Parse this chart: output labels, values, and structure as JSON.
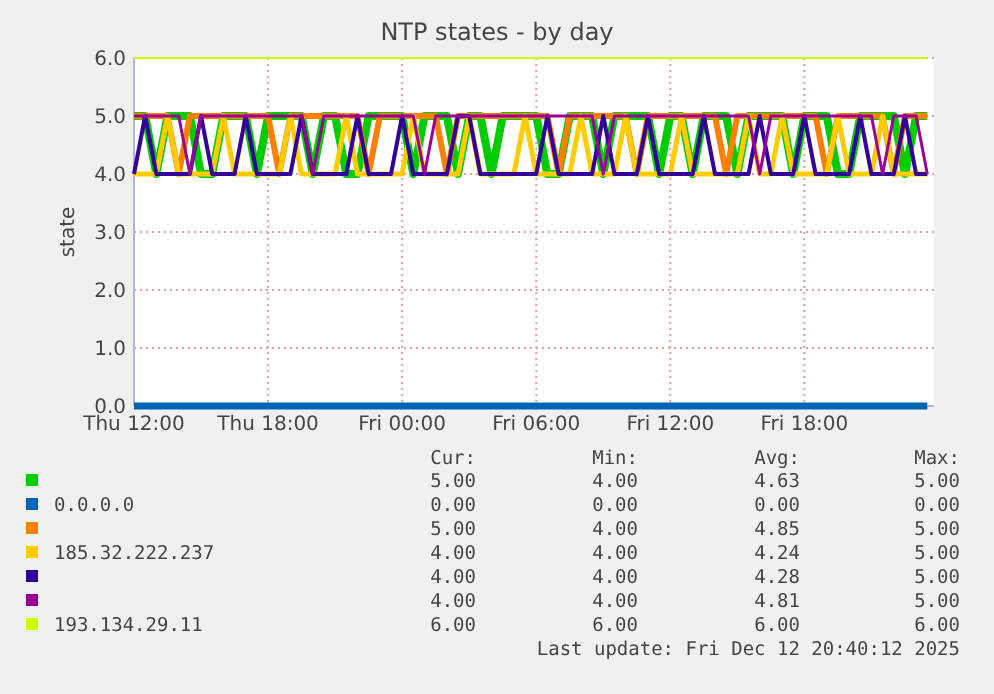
{
  "chart_data": {
    "type": "line",
    "title": "NTP states - by day",
    "ylabel": "state",
    "x": [
      "2025-12-11T12:00",
      "2025-12-11T12:30",
      "2025-12-11T13:00",
      "2025-12-11T13:30",
      "2025-12-11T14:00",
      "2025-12-11T14:30",
      "2025-12-11T15:00",
      "2025-12-11T15:30",
      "2025-12-11T16:00",
      "2025-12-11T16:30",
      "2025-12-11T17:00",
      "2025-12-11T17:30",
      "2025-12-11T18:00",
      "2025-12-11T18:30",
      "2025-12-11T19:00",
      "2025-12-11T19:30",
      "2025-12-11T20:00",
      "2025-12-11T20:30",
      "2025-12-11T21:00",
      "2025-12-11T21:30",
      "2025-12-11T22:00",
      "2025-12-11T22:30",
      "2025-12-11T23:00",
      "2025-12-11T23:30",
      "2025-12-12T00:00",
      "2025-12-12T00:30",
      "2025-12-12T01:00",
      "2025-12-12T01:30",
      "2025-12-12T02:00",
      "2025-12-12T02:30",
      "2025-12-12T03:00",
      "2025-12-12T03:30",
      "2025-12-12T04:00",
      "2025-12-12T04:30",
      "2025-12-12T05:00",
      "2025-12-12T05:30",
      "2025-12-12T06:00",
      "2025-12-12T06:30",
      "2025-12-12T07:00",
      "2025-12-12T07:30",
      "2025-12-12T08:00",
      "2025-12-12T08:30",
      "2025-12-12T09:00",
      "2025-12-12T09:30",
      "2025-12-12T10:00",
      "2025-12-12T10:30",
      "2025-12-12T11:00",
      "2025-12-12T11:30",
      "2025-12-12T12:00",
      "2025-12-12T12:30",
      "2025-12-12T13:00",
      "2025-12-12T13:30",
      "2025-12-12T14:00",
      "2025-12-12T14:30",
      "2025-12-12T15:00",
      "2025-12-12T15:30",
      "2025-12-12T16:00",
      "2025-12-12T16:30",
      "2025-12-12T17:00",
      "2025-12-12T17:30",
      "2025-12-12T18:00",
      "2025-12-12T18:30",
      "2025-12-12T19:00",
      "2025-12-12T19:30",
      "2025-12-12T20:00",
      "2025-12-12T20:30",
      "2025-12-12T21:00",
      "2025-12-12T21:30",
      "2025-12-12T22:00",
      "2025-12-12T22:30",
      "2025-12-12T23:00",
      "2025-12-12T23:30"
    ],
    "xlim": [
      "2025-12-11T12:00",
      "2025-12-12T23:48"
    ],
    "xticks": [
      {
        "value": "2025-12-11T12:00",
        "label": "Thu 12:00"
      },
      {
        "value": "2025-12-11T18:00",
        "label": "Thu 18:00"
      },
      {
        "value": "2025-12-12T00:00",
        "label": "Fri 00:00"
      },
      {
        "value": "2025-12-12T06:00",
        "label": "Fri 06:00"
      },
      {
        "value": "2025-12-12T12:00",
        "label": "Fri 12:00"
      },
      {
        "value": "2025-12-12T18:00",
        "label": "Fri 18:00"
      }
    ],
    "ylim": [
      0,
      6
    ],
    "yticks": [
      {
        "value": 0,
        "label": "0.0"
      },
      {
        "value": 1,
        "label": "1.0"
      },
      {
        "value": 2,
        "label": "2.0"
      },
      {
        "value": 3,
        "label": "3.0"
      },
      {
        "value": 4,
        "label": "4.0"
      },
      {
        "value": 5,
        "label": "5.0"
      },
      {
        "value": 6,
        "label": "6.0"
      }
    ],
    "grid": true,
    "legend": "bottom",
    "series": [
      {
        "color": "#00cc00",
        "values": [
          5,
          5,
          4,
          5,
          5,
          5,
          4,
          4,
          5,
          5,
          5,
          4,
          5,
          5,
          5,
          5,
          4,
          5,
          5,
          4,
          4,
          5,
          5,
          5,
          5,
          4,
          5,
          5,
          5,
          4,
          5,
          5,
          4,
          5,
          5,
          5,
          5,
          4,
          4,
          5,
          5,
          5,
          4,
          5,
          5,
          5,
          5,
          4,
          5,
          5,
          4,
          5,
          5,
          5,
          4,
          5,
          5,
          5,
          5,
          4,
          5,
          5,
          5,
          4,
          4,
          5,
          5,
          5,
          5,
          4,
          5,
          5
        ]
      },
      {
        "name": "0.0.0.0",
        "color": "#0066b3",
        "x": [
          "2025-12-11T12:00",
          "2025-12-12T23:30"
        ],
        "values": [
          0,
          0
        ]
      },
      {
        "color": "#ff8000",
        "values": [
          5,
          5,
          5,
          5,
          4,
          5,
          5,
          5,
          5,
          5,
          5,
          5,
          5,
          4,
          5,
          5,
          5,
          5,
          5,
          5,
          5,
          4,
          5,
          5,
          5,
          5,
          5,
          5,
          4,
          5,
          5,
          5,
          5,
          5,
          5,
          5,
          5,
          5,
          4,
          5,
          5,
          5,
          5,
          5,
          5,
          4,
          5,
          5,
          5,
          5,
          5,
          5,
          5,
          4,
          5,
          5,
          5,
          5,
          5,
          5,
          5,
          5,
          4,
          5,
          5,
          5,
          5,
          5,
          4,
          5,
          5,
          5
        ]
      },
      {
        "name": "185.32.222.237",
        "color": "#ffcc00",
        "values": [
          4,
          4,
          4,
          5,
          4,
          4,
          4,
          4,
          5,
          4,
          4,
          4,
          4,
          4,
          5,
          4,
          4,
          4,
          4,
          5,
          4,
          4,
          4,
          4,
          4,
          5,
          4,
          4,
          4,
          4,
          5,
          4,
          4,
          4,
          4,
          5,
          4,
          4,
          4,
          4,
          5,
          4,
          4,
          4,
          5,
          4,
          4,
          4,
          4,
          5,
          4,
          4,
          4,
          4,
          4,
          5,
          4,
          4,
          5,
          4,
          4,
          4,
          4,
          5,
          4,
          4,
          4,
          5,
          4,
          4,
          4,
          4
        ]
      },
      {
        "color": "#330099",
        "values": [
          4,
          5,
          4,
          4,
          4,
          4,
          5,
          4,
          4,
          4,
          5,
          4,
          4,
          4,
          4,
          5,
          4,
          4,
          4,
          4,
          5,
          4,
          4,
          4,
          5,
          4,
          4,
          4,
          4,
          5,
          5,
          4,
          4,
          4,
          4,
          4,
          4,
          5,
          4,
          4,
          4,
          4,
          5,
          4,
          4,
          4,
          5,
          4,
          4,
          4,
          4,
          5,
          4,
          4,
          4,
          4,
          5,
          4,
          4,
          4,
          5,
          4,
          4,
          4,
          4,
          5,
          4,
          4,
          4,
          5,
          4,
          4
        ]
      },
      {
        "color": "#990099",
        "values": [
          5,
          5,
          5,
          5,
          5,
          4,
          5,
          5,
          5,
          5,
          5,
          5,
          5,
          5,
          5,
          5,
          4,
          5,
          5,
          5,
          5,
          5,
          5,
          5,
          5,
          5,
          4,
          5,
          5,
          5,
          5,
          5,
          5,
          5,
          5,
          5,
          5,
          5,
          5,
          5,
          5,
          5,
          4,
          5,
          5,
          5,
          5,
          5,
          5,
          5,
          5,
          5,
          5,
          5,
          5,
          5,
          4,
          5,
          5,
          5,
          5,
          5,
          5,
          5,
          5,
          5,
          5,
          4,
          5,
          5,
          5,
          4
        ]
      },
      {
        "name": "193.134.29.11",
        "color": "#ccff00",
        "x": [
          "2025-12-11T12:00",
          "2025-12-12T23:30"
        ],
        "values": [
          6,
          6
        ]
      }
    ],
    "annotations": [
      "Cur:",
      "Min:",
      "Avg:",
      "Max:",
      "5.00",
      "4.00",
      "4.63",
      "5.00",
      "0.00",
      "0.00",
      "0.00",
      "0.00",
      "5.00",
      "4.00",
      "4.85",
      "5.00",
      "4.00",
      "4.00",
      "4.24",
      "5.00",
      "4.00",
      "4.00",
      "4.28",
      "5.00",
      "4.00",
      "4.00",
      "4.81",
      "5.00",
      "6.00",
      "6.00",
      "6.00",
      "6.00",
      "Last update: Fri Dec 12 20:40:12 2025"
    ]
  }
}
